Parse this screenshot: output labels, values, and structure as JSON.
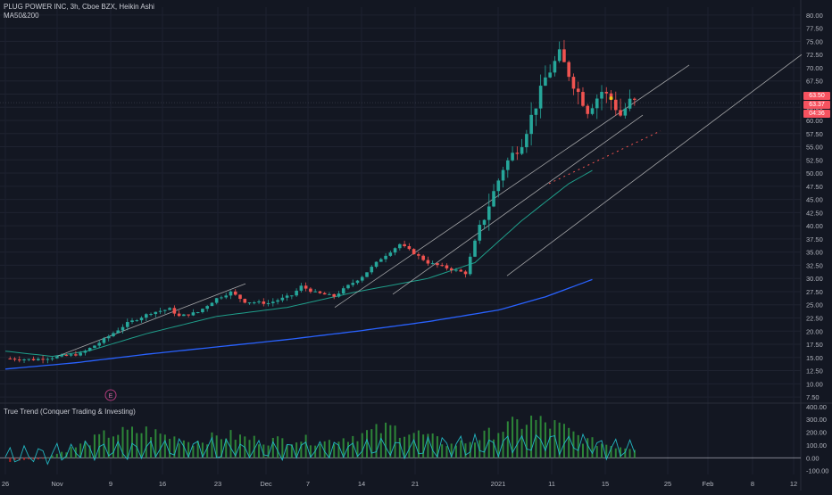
{
  "header": {
    "symbol_line": "PLUG POWER INC, 3h, Cboe BZX, Heikin Ashi",
    "indicator_line": "MA50&200",
    "oscillator_title": "True Trend (Conquer Trading & Investing)"
  },
  "price_tags": [
    {
      "label": "63.50",
      "color": "#f7525f"
    },
    {
      "label": "63.37",
      "color": "#f7525f"
    },
    {
      "label": "04:36",
      "color": "#f7525f"
    }
  ],
  "earnings_marker": "E",
  "colors": {
    "background": "#131722",
    "up_candle": "#26a69a",
    "down_candle": "#ef5350",
    "ma50": "#1f9e8a",
    "ma200": "#2962ff",
    "hist_positive": "#2e8b3a",
    "hist_negative": "#b22222",
    "oscillator_line": "#22b5c0",
    "trendline": "#c8c8c8"
  },
  "chart_data": [
    {
      "type": "line",
      "chart_kind": "candlestick (Heikin Ashi)",
      "title": "PLUG POWER INC, 3h, Cboe BZX, Heikin Ashi",
      "x_tick_labels": [
        "26",
        "Nov",
        "9",
        "16",
        "23",
        "Dec",
        "7",
        "14",
        "21",
        "2021",
        "11",
        "15",
        "25",
        "Feb",
        "8",
        "12"
      ],
      "y_tick_labels": [
        "80.00",
        "77.50",
        "75.00",
        "72.50",
        "70.00",
        "67.50",
        "65.00",
        "62.50",
        "60.00",
        "57.50",
        "55.00",
        "52.50",
        "50.00",
        "47.50",
        "45.00",
        "42.50",
        "40.00",
        "37.50",
        "35.00",
        "32.50",
        "30.00",
        "27.50",
        "25.00",
        "22.50",
        "20.00",
        "17.50",
        "15.00",
        "12.50",
        "10.00",
        "7.50"
      ],
      "ylim": [
        6.5,
        81.5
      ],
      "grid": true,
      "price_path": [
        [
          0,
          14.8
        ],
        [
          6,
          14.6
        ],
        [
          11,
          15.1
        ],
        [
          16,
          15.7
        ],
        [
          20,
          17.8
        ],
        [
          26,
          21.5
        ],
        [
          31,
          23.5
        ],
        [
          35,
          24.2
        ],
        [
          37,
          22.8
        ],
        [
          41,
          23.6
        ],
        [
          45,
          26.2
        ],
        [
          48,
          27.4
        ],
        [
          51,
          25.6
        ],
        [
          56,
          25.3
        ],
        [
          61,
          26.8
        ],
        [
          63,
          28.5
        ],
        [
          66,
          27.3
        ],
        [
          70,
          26.6
        ],
        [
          73,
          28.6
        ],
        [
          76,
          30.4
        ],
        [
          80,
          33.8
        ],
        [
          84,
          36.5
        ],
        [
          87,
          34.8
        ],
        [
          90,
          33.0
        ],
        [
          94,
          32.0
        ],
        [
          98,
          31.0
        ],
        [
          100,
          37.0
        ],
        [
          103,
          44.0
        ],
        [
          106,
          51.0
        ],
        [
          110,
          56.0
        ],
        [
          113,
          63.0
        ],
        [
          115,
          68.0
        ],
        [
          118,
          72.5
        ],
        [
          121,
          67.0
        ],
        [
          124,
          62.0
        ],
        [
          127,
          65.5
        ],
        [
          129,
          64.0
        ],
        [
          131,
          61.0
        ],
        [
          133,
          63.5
        ],
        [
          134,
          63.4
        ]
      ],
      "ma50": [
        [
          0,
          16.2
        ],
        [
          10,
          15.2
        ],
        [
          18,
          16.3
        ],
        [
          30,
          19.5
        ],
        [
          45,
          22.8
        ],
        [
          60,
          24.5
        ],
        [
          75,
          27.5
        ],
        [
          90,
          30.0
        ],
        [
          100,
          33.0
        ],
        [
          110,
          41.0
        ],
        [
          120,
          48.0
        ],
        [
          125,
          50.5
        ]
      ],
      "ma200": [
        [
          0,
          12.8
        ],
        [
          15,
          14.0
        ],
        [
          30,
          15.6
        ],
        [
          45,
          17.0
        ],
        [
          60,
          18.4
        ],
        [
          75,
          20.0
        ],
        [
          90,
          21.8
        ],
        [
          105,
          24.0
        ],
        [
          115,
          26.5
        ],
        [
          125,
          29.8
        ]
      ],
      "last_price": 63.37
    },
    {
      "type": "bar",
      "title": "True Trend (Conquer Trading & Investing)",
      "y_tick_labels": [
        "400.00",
        "300.00",
        "200.00",
        "100.00",
        "0.00",
        "-100.00"
      ],
      "ylim": [
        -130,
        420
      ],
      "histogram_envelope": [
        [
          0,
          -40
        ],
        [
          8,
          -10
        ],
        [
          15,
          110
        ],
        [
          22,
          240
        ],
        [
          30,
          270
        ],
        [
          35,
          210
        ],
        [
          40,
          160
        ],
        [
          47,
          230
        ],
        [
          55,
          170
        ],
        [
          62,
          190
        ],
        [
          68,
          160
        ],
        [
          75,
          230
        ],
        [
          82,
          300
        ],
        [
          88,
          240
        ],
        [
          95,
          130
        ],
        [
          100,
          180
        ],
        [
          105,
          280
        ],
        [
          112,
          380
        ],
        [
          118,
          310
        ],
        [
          124,
          170
        ],
        [
          130,
          120
        ],
        [
          134,
          100
        ]
      ],
      "oscillator_line_level": [
        [
          0,
          20
        ],
        [
          20,
          60
        ],
        [
          40,
          70
        ],
        [
          60,
          60
        ],
        [
          80,
          80
        ],
        [
          100,
          90
        ],
        [
          115,
          120
        ],
        [
          134,
          60
        ]
      ]
    }
  ]
}
